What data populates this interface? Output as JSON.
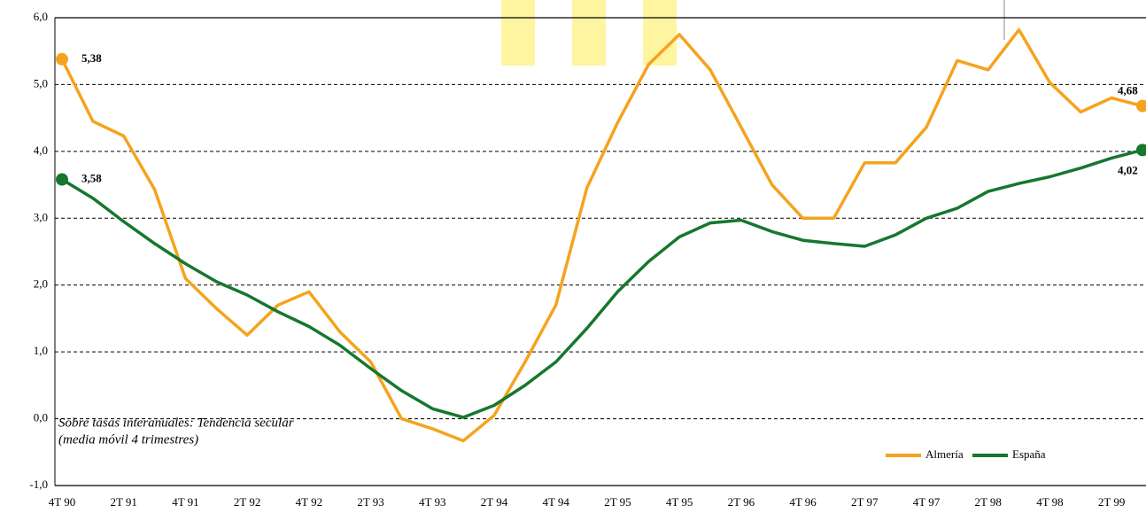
{
  "chart_data": {
    "type": "line",
    "categories": [
      "4T 90",
      null,
      "2T 91",
      null,
      "4T 91",
      null,
      "2T 92",
      null,
      "4T 92",
      null,
      "2T 93",
      null,
      "4T 93",
      null,
      "2T 94",
      null,
      "4T 94",
      null,
      "2T 95",
      null,
      "4T 95",
      null,
      "2T 96",
      null,
      "4T 96",
      null,
      "2T 97",
      null,
      "4T 97",
      null,
      "2T 98",
      null,
      "4T 98",
      null,
      "2T 99",
      null
    ],
    "series": [
      {
        "name": "Almería",
        "color": "#f5a31e",
        "values": [
          5.38,
          4.45,
          4.23,
          3.43,
          2.1,
          1.65,
          1.25,
          1.7,
          1.9,
          1.3,
          0.85,
          0.0,
          -0.15,
          -0.33,
          0.05,
          0.85,
          1.7,
          3.45,
          4.43,
          5.3,
          5.75,
          5.22,
          4.36,
          3.5,
          3.0,
          3.0,
          3.83,
          3.83,
          4.36,
          5.36,
          5.22,
          5.82,
          5.03,
          4.59,
          4.8,
          4.68
        ],
        "value_labels": [
          "5,38",
          null,
          null,
          null,
          null,
          null,
          null,
          null,
          null,
          null,
          null,
          null,
          null,
          null,
          null,
          null,
          null,
          null,
          null,
          null,
          null,
          null,
          null,
          null,
          null,
          null,
          null,
          null,
          null,
          null,
          null,
          null,
          null,
          null,
          null,
          "4,68"
        ]
      },
      {
        "name": "España",
        "color": "#16772e",
        "values": [
          3.58,
          3.3,
          2.95,
          2.62,
          2.32,
          2.05,
          1.85,
          1.6,
          1.38,
          1.1,
          0.75,
          0.42,
          0.15,
          0.02,
          0.2,
          0.5,
          0.85,
          1.35,
          1.9,
          2.35,
          2.72,
          2.93,
          2.97,
          2.8,
          2.67,
          2.62,
          2.58,
          2.75,
          3.0,
          3.15,
          3.4,
          3.52,
          3.62,
          3.75,
          3.9,
          4.02
        ],
        "value_labels": [
          "3,58",
          null,
          null,
          null,
          null,
          null,
          null,
          null,
          null,
          null,
          null,
          null,
          null,
          null,
          null,
          null,
          null,
          null,
          null,
          null,
          null,
          null,
          null,
          null,
          null,
          null,
          null,
          null,
          null,
          null,
          null,
          null,
          null,
          null,
          null,
          "4,02"
        ]
      }
    ],
    "ylim": [
      -1,
      6
    ],
    "yticks": [
      {
        "value": -1,
        "label": "-1,0"
      },
      {
        "value": 0,
        "label": "0,0"
      },
      {
        "value": 1,
        "label": "1,0"
      },
      {
        "value": 2,
        "label": "2,0"
      },
      {
        "value": 3,
        "label": "3,0"
      },
      {
        "value": 4,
        "label": "4,0"
      },
      {
        "value": 5,
        "label": "5,0"
      },
      {
        "value": 6,
        "label": "6,0"
      }
    ],
    "grid": true,
    "annotations": [
      "Sobre tasas interanuales: Tendencia secular",
      "(media móvil 4 trimestres)"
    ],
    "legend": "lower right"
  }
}
